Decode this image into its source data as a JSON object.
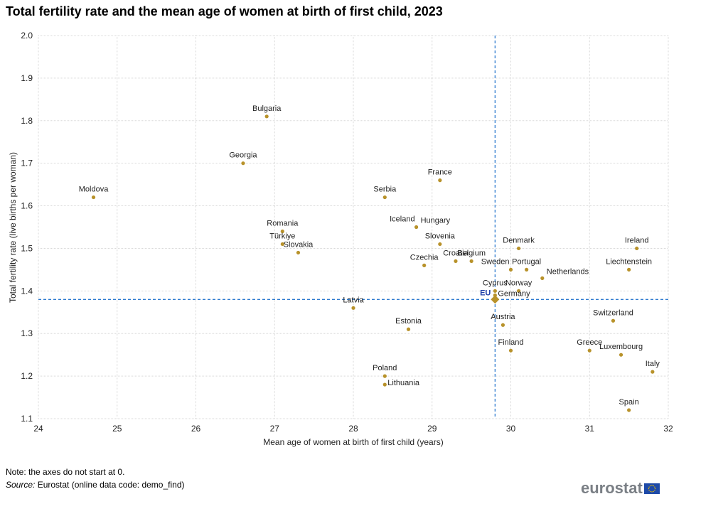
{
  "title": "Total fertility rate and the mean age of women at birth of first child, 2023",
  "note": "Note: the axes do not start at 0.",
  "source": {
    "label": "Source:",
    "text": " Eurostat (online data code: demo_find)"
  },
  "logo": {
    "text": "eurostat",
    "flag_color": "#1E4AA8"
  },
  "colors": {
    "point": "#B8922A",
    "reference_line": "#2E7BCF",
    "eu_label": "#1F3FA8",
    "grid": "#D9D9D9"
  },
  "chart_data": {
    "type": "scatter",
    "title": "Total fertility rate and the mean age of women at birth of first child, 2023",
    "xlabel": "Mean age of women at birth of first child (years)",
    "ylabel": "Total fertility rate (live births per woman)",
    "xlim": [
      24,
      32
    ],
    "ylim": [
      1.1,
      2.0
    ],
    "xticks": [
      "24",
      "25",
      "26",
      "27",
      "28",
      "29",
      "30",
      "31",
      "32"
    ],
    "yticks": [
      "1.1",
      "1.2",
      "1.3",
      "1.4",
      "1.5",
      "1.6",
      "1.7",
      "1.8",
      "1.9",
      "2.0"
    ],
    "grid": true,
    "reference_lines": {
      "x": 29.8,
      "y": 1.38,
      "style": "dashed"
    },
    "points": [
      {
        "label": "Moldova",
        "x": 24.7,
        "y": 1.62,
        "label_pos": "top"
      },
      {
        "label": "Bulgaria",
        "x": 26.9,
        "y": 1.81,
        "label_pos": "top"
      },
      {
        "label": "Georgia",
        "x": 26.6,
        "y": 1.7,
        "label_pos": "top"
      },
      {
        "label": "Romania",
        "x": 27.1,
        "y": 1.54,
        "label_pos": "top"
      },
      {
        "label": "Türkiye",
        "x": 27.1,
        "y": 1.51,
        "label_pos": "top"
      },
      {
        "label": "Slovakia",
        "x": 27.3,
        "y": 1.49,
        "label_pos": "top"
      },
      {
        "label": "Serbia",
        "x": 28.4,
        "y": 1.62,
        "label_pos": "top"
      },
      {
        "label": "France",
        "x": 29.1,
        "y": 1.66,
        "label_pos": "top"
      },
      {
        "label": "Iceland",
        "x": 28.8,
        "y": 1.55,
        "label_pos": "topleft"
      },
      {
        "label": "Hungary",
        "x": 28.8,
        "y": 1.55,
        "label_pos": "topright"
      },
      {
        "label": "Slovenia",
        "x": 29.1,
        "y": 1.51,
        "label_pos": "top"
      },
      {
        "label": "Czechia",
        "x": 28.9,
        "y": 1.46,
        "label_pos": "top"
      },
      {
        "label": "Croatia",
        "x": 29.3,
        "y": 1.47,
        "label_pos": "top"
      },
      {
        "label": "Belgium",
        "x": 29.5,
        "y": 1.47,
        "label_pos": "top"
      },
      {
        "label": "Denmark",
        "x": 30.1,
        "y": 1.5,
        "label_pos": "top"
      },
      {
        "label": "Sweden",
        "x": 30.0,
        "y": 1.45,
        "label_pos": "topleft"
      },
      {
        "label": "Portugal",
        "x": 30.2,
        "y": 1.45,
        "label_pos": "top"
      },
      {
        "label": "Netherlands",
        "x": 30.4,
        "y": 1.43,
        "label_pos": "topright"
      },
      {
        "label": "Cyprus",
        "x": 29.8,
        "y": 1.4,
        "label_pos": "top"
      },
      {
        "label": "Norway",
        "x": 30.1,
        "y": 1.4,
        "label_pos": "top"
      },
      {
        "label": "Germany",
        "x": 29.8,
        "y": 1.39,
        "label_pos": "right"
      },
      {
        "label": "Austria",
        "x": 29.9,
        "y": 1.32,
        "label_pos": "top"
      },
      {
        "label": "Finland",
        "x": 30.0,
        "y": 1.26,
        "label_pos": "top"
      },
      {
        "label": "Latvia",
        "x": 28.0,
        "y": 1.36,
        "label_pos": "top"
      },
      {
        "label": "Estonia",
        "x": 28.7,
        "y": 1.31,
        "label_pos": "top"
      },
      {
        "label": "Poland",
        "x": 28.4,
        "y": 1.2,
        "label_pos": "top"
      },
      {
        "label": "Lithuania",
        "x": 28.4,
        "y": 1.18,
        "label_pos": "right"
      },
      {
        "label": "Ireland",
        "x": 31.6,
        "y": 1.5,
        "label_pos": "top"
      },
      {
        "label": "Liechtenstein",
        "x": 31.5,
        "y": 1.45,
        "label_pos": "top"
      },
      {
        "label": "Switzerland",
        "x": 31.3,
        "y": 1.33,
        "label_pos": "top"
      },
      {
        "label": "Greece",
        "x": 31.0,
        "y": 1.26,
        "label_pos": "top"
      },
      {
        "label": "Luxembourg",
        "x": 31.4,
        "y": 1.25,
        "label_pos": "top"
      },
      {
        "label": "Italy",
        "x": 31.8,
        "y": 1.21,
        "label_pos": "top"
      },
      {
        "label": "Spain",
        "x": 31.5,
        "y": 1.12,
        "label_pos": "top"
      },
      {
        "label": "EU",
        "x": 29.8,
        "y": 1.38,
        "label_pos": "left",
        "highlight": true
      }
    ]
  }
}
